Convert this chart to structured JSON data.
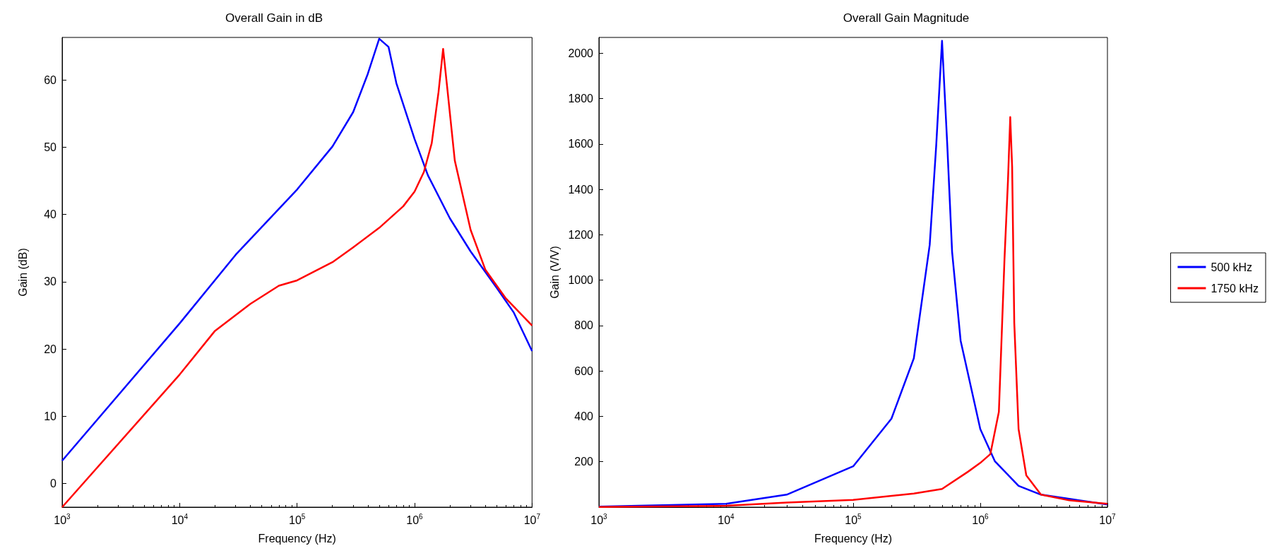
{
  "chart_data": [
    {
      "type": "line",
      "title": "Overall Gain in dB",
      "xlabel": "Frequency (Hz)",
      "ylabel": "Gain (dB)",
      "log": "x",
      "xlim": [
        1000,
        10000000
      ],
      "xticks": [
        {
          "value": 1000,
          "label": "10$^{3}$"
        },
        {
          "value": 10000,
          "label": "10$^{4}$"
        },
        {
          "value": 100000,
          "label": "10$^{5}$"
        },
        {
          "value": 1000000,
          "label": "10$^{6}$"
        },
        {
          "value": 10000000,
          "label": "10$^{7}$"
        }
      ],
      "ylim": [
        -3.5,
        66.3
      ],
      "yticks": [
        0,
        10,
        20,
        30,
        40,
        50,
        60
      ],
      "series": [
        {
          "color": "#0000ff",
          "x": [
            1000,
            10000,
            30000,
            100000,
            200000,
            300000,
            400000,
            500000,
            600000,
            700000,
            1000000,
            1300000,
            2000000,
            3000000,
            5000000,
            7000000,
            10000000
          ],
          "values": [
            3.4,
            23.8,
            34,
            43.7,
            50.1,
            55.2,
            60.9,
            66.1,
            64.9,
            59.5,
            51.2,
            45.8,
            39.4,
            34.5,
            29.1,
            25.4,
            19.7
          ]
        },
        {
          "color": "#ff0000",
          "x": [
            1000,
            10000,
            20000,
            40000,
            70000,
            100000,
            200000,
            300000,
            500000,
            800000,
            1000000,
            1200000,
            1400000,
            1600000,
            1750000,
            1900000,
            2200000,
            3000000,
            4000000,
            6000000,
            10000000
          ],
          "values": [
            -3.5,
            16.2,
            22.7,
            26.7,
            29.4,
            30.2,
            32.9,
            35.1,
            38,
            41.2,
            43.4,
            46.3,
            50.6,
            58.2,
            64.6,
            58.7,
            48,
            37.7,
            31.8,
            27.5,
            23.5
          ]
        }
      ]
    },
    {
      "type": "line",
      "title": "Overall Gain Magnitude",
      "xlabel": "Frequency (Hz)",
      "ylabel": "Gain (V/V)",
      "log": "x",
      "legend": "right",
      "xlim": [
        1000,
        10000000
      ],
      "xticks": [
        {
          "value": 1000,
          "label": "10$^{3}$"
        },
        {
          "value": 10000,
          "label": "10$^{4}$"
        },
        {
          "value": 100000,
          "label": "10$^{5}$"
        },
        {
          "value": 1000000,
          "label": "10$^{6}$"
        },
        {
          "value": 10000000,
          "label": "10$^{7}$"
        }
      ],
      "ylim": [
        0,
        2070
      ],
      "yticks": [
        200,
        400,
        600,
        800,
        1000,
        1200,
        1400,
        1600,
        1800,
        2000
      ],
      "series": [
        {
          "name": "500 kHz",
          "color": "#0000ff",
          "x": [
            1000,
            10000,
            30000,
            100000,
            200000,
            300000,
            400000,
            450000,
            500000,
            550000,
            600000,
            700000,
            1000000,
            1300000,
            2000000,
            3000000,
            10000000
          ],
          "values": [
            2,
            15,
            55,
            180,
            390,
            656,
            1156,
            1594,
            2055,
            1594,
            1125,
            734,
            344,
            203,
            94,
            55,
            12
          ]
        },
        {
          "name": "1750 kHz",
          "color": "#ff0000",
          "x": [
            1000,
            10000,
            30000,
            100000,
            300000,
            500000,
            800000,
            1000000,
            1200000,
            1400000,
            1550000,
            1650000,
            1720000,
            1780000,
            1850000,
            2000000,
            2300000,
            3000000,
            5000000,
            10000000
          ],
          "values": [
            1,
            6,
            20,
            32,
            60,
            80,
            156,
            195,
            234,
            420,
            1094,
            1437,
            1719,
            1500,
            812,
            344,
            140,
            55,
            30,
            15
          ]
        }
      ]
    }
  ]
}
